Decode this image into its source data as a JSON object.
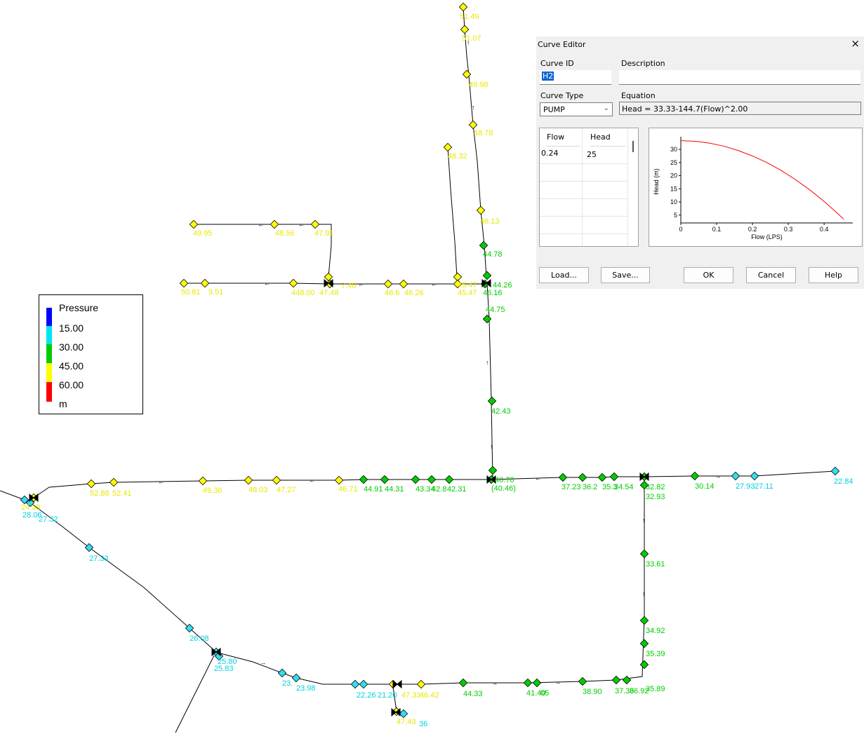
{
  "network": {
    "label_color_yellow": "#e8e800",
    "label_color_green": "#00cc00",
    "label_color_cyan": "#00d0e0",
    "node_labels": [
      {
        "text": "51.49",
        "color": "yellow"
      },
      {
        "text": "51.07",
        "color": "yellow"
      },
      {
        "text": "49.98",
        "color": "yellow"
      },
      {
        "text": "48.78",
        "color": "yellow"
      },
      {
        "text": "48.32",
        "color": "yellow"
      },
      {
        "text": "46.13",
        "color": "yellow"
      },
      {
        "text": "44.78",
        "color": "green"
      },
      {
        "text": "49.95",
        "color": "yellow"
      },
      {
        "text": "48.56",
        "color": "yellow"
      },
      {
        "text": "47.91",
        "color": "yellow"
      },
      {
        "text": "50.81",
        "color": "yellow"
      },
      {
        "text": "9.51",
        "color": "yellow"
      },
      {
        "text": "448.00",
        "color": "yellow"
      },
      {
        "text": "47.48",
        "color": "yellow"
      },
      {
        "text": "7.46",
        "color": "yellow"
      },
      {
        "text": "46.6",
        "color": "yellow"
      },
      {
        "text": "46.26",
        "color": "yellow"
      },
      {
        "text": "45.47",
        "color": "yellow"
      },
      {
        "text": "45.47",
        "color": "yellow"
      },
      {
        "text": "44.26",
        "color": "green"
      },
      {
        "text": "46.16",
        "color": "green"
      },
      {
        "text": "44.75",
        "color": "green"
      },
      {
        "text": "42.43",
        "color": "green"
      },
      {
        "text": "52.88",
        "color": "yellow"
      },
      {
        "text": "52.41",
        "color": "yellow"
      },
      {
        "text": "49.36",
        "color": "yellow"
      },
      {
        "text": "48.03",
        "color": "yellow"
      },
      {
        "text": "47.27",
        "color": "yellow"
      },
      {
        "text": "46.71",
        "color": "yellow"
      },
      {
        "text": "44.91",
        "color": "green"
      },
      {
        "text": "44.31",
        "color": "green"
      },
      {
        "text": "43.34",
        "color": "green"
      },
      {
        "text": "42.8",
        "color": "green"
      },
      {
        "text": "42.31",
        "color": "green"
      },
      {
        "text": "40.76",
        "color": "green"
      },
      {
        "text": "(40.46)",
        "color": "green"
      },
      {
        "text": "37.23",
        "color": "green"
      },
      {
        "text": "36.2",
        "color": "green"
      },
      {
        "text": "35.3",
        "color": "green"
      },
      {
        "text": "34.54",
        "color": "green"
      },
      {
        "text": "32.82",
        "color": "green"
      },
      {
        "text": "32.93",
        "color": "green"
      },
      {
        "text": "30.14",
        "color": "green"
      },
      {
        "text": "27.93",
        "color": "cyan"
      },
      {
        "text": "27.11",
        "color": "cyan"
      },
      {
        "text": "22.84",
        "color": "cyan"
      },
      {
        "text": "24.39",
        "color": "yellow"
      },
      {
        "text": "28.06",
        "color": "cyan"
      },
      {
        "text": "27.32",
        "color": "cyan"
      },
      {
        "text": "27.33",
        "color": "cyan"
      },
      {
        "text": "26.08",
        "color": "cyan"
      },
      {
        "text": "25.80",
        "color": "cyan"
      },
      {
        "text": "25.83",
        "color": "cyan"
      },
      {
        "text": "23.",
        "color": "cyan"
      },
      {
        "text": "23.98",
        "color": "cyan"
      },
      {
        "text": "22.26",
        "color": "cyan"
      },
      {
        "text": "21.20",
        "color": "cyan"
      },
      {
        "text": "47.33",
        "color": "yellow"
      },
      {
        "text": "46.42",
        "color": "yellow"
      },
      {
        "text": "47.43",
        "color": "yellow"
      },
      {
        "text": "36",
        "color": "cyan"
      },
      {
        "text": "44.33",
        "color": "green"
      },
      {
        "text": "41.40",
        "color": "green"
      },
      {
        "text": "05",
        "color": "green"
      },
      {
        "text": "38.90",
        "color": "green"
      },
      {
        "text": "37.36",
        "color": "green"
      },
      {
        "text": "36.92",
        "color": "green"
      },
      {
        "text": "35.89",
        "color": "green"
      },
      {
        "text": "35.39",
        "color": "green"
      },
      {
        "text": "34.92",
        "color": "green"
      },
      {
        "text": "33.61",
        "color": "green"
      }
    ]
  },
  "legend": {
    "title": "Pressure",
    "values": [
      "15.00",
      "30.00",
      "45.00",
      "60.00"
    ],
    "unit": "m",
    "colors": [
      "#0000ff",
      "#00e5ee",
      "#00cc00",
      "#ffff00",
      "#ff0000"
    ]
  },
  "curve_editor": {
    "title": "Curve Editor",
    "close_glyph": "×",
    "curve_id_label": "Curve ID",
    "curve_id_value": "H2",
    "description_label": "Description",
    "description_value": "",
    "curve_type_label": "Curve Type",
    "curve_type_value": "PUMP",
    "equation_label": "Equation",
    "equation_value": "Head = 33.33-144.7(Flow)^2.00",
    "table": {
      "headers": [
        "Flow",
        "Head"
      ],
      "rows": [
        [
          "0.24",
          "25"
        ]
      ]
    },
    "buttons": {
      "load": "Load...",
      "save": "Save...",
      "ok": "OK",
      "cancel": "Cancel",
      "help": "Help"
    }
  },
  "chart_data": {
    "type": "line",
    "title": "",
    "xlabel": "Flow (LPS)",
    "ylabel": "Head (m)",
    "xlim": [
      0,
      0.48
    ],
    "ylim": [
      2,
      33.5
    ],
    "x_ticks": [
      "0",
      "0.1",
      "0.2",
      "0.3",
      "0.4"
    ],
    "y_ticks": [
      "5",
      "10",
      "15",
      "20",
      "25",
      "30"
    ],
    "grid": false,
    "line_color": "#ff0000",
    "series": [
      {
        "x": [
          0,
          0.04,
          0.08,
          0.12,
          0.16,
          0.2,
          0.24,
          0.28,
          0.32,
          0.36,
          0.4,
          0.44,
          0.455
        ],
        "y": [
          33.33,
          33.1,
          32.4,
          31.25,
          29.6,
          27.5,
          25.0,
          22.0,
          18.5,
          14.6,
          10.2,
          5.3,
          3.4
        ]
      }
    ]
  }
}
